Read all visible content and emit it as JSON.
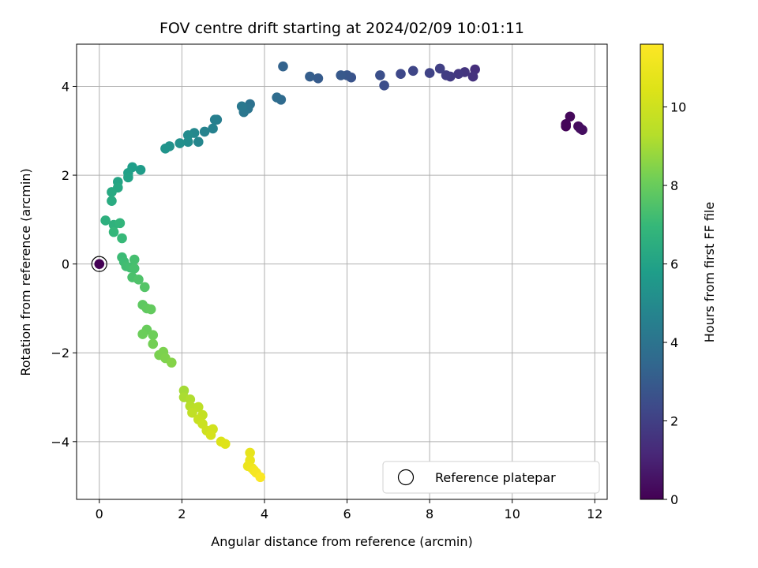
{
  "chart_data": {
    "type": "scatter",
    "title": "FOV centre drift starting at 2024/02/09 10:01:11",
    "xlabel": "Angular distance from reference (arcmin)",
    "ylabel": "Rotation from reference (arcmin)",
    "xlim": [
      -0.55,
      12.3
    ],
    "ylim": [
      -5.3,
      4.95
    ],
    "xticks": [
      0,
      2,
      4,
      6,
      8,
      10,
      12
    ],
    "yticks": [
      -4,
      -2,
      0,
      2,
      4
    ],
    "grid": true,
    "legend": {
      "position": "lower-right",
      "entries": [
        "Reference platepar"
      ]
    },
    "colorbar": {
      "label": "Hours from first FF file",
      "range": [
        0,
        11.6
      ],
      "ticks": [
        0,
        2,
        4,
        6,
        8,
        10
      ],
      "colormap": "viridis"
    },
    "reference_point": {
      "x": 0,
      "y": 0,
      "label": "Reference platepar"
    },
    "points": [
      {
        "x": 0.0,
        "y": 0.0,
        "t": 0.0
      },
      {
        "x": 11.3,
        "y": 3.1,
        "t": 0.1
      },
      {
        "x": 11.3,
        "y": 3.15,
        "t": 0.15
      },
      {
        "x": 11.4,
        "y": 3.32,
        "t": 0.2
      },
      {
        "x": 11.6,
        "y": 3.1,
        "t": 0.3
      },
      {
        "x": 11.65,
        "y": 3.05,
        "t": 0.35
      },
      {
        "x": 11.7,
        "y": 3.02,
        "t": 0.4
      },
      {
        "x": 9.1,
        "y": 4.38,
        "t": 1.4
      },
      {
        "x": 9.05,
        "y": 4.22,
        "t": 1.5
      },
      {
        "x": 8.85,
        "y": 4.32,
        "t": 1.6
      },
      {
        "x": 8.7,
        "y": 4.28,
        "t": 1.7
      },
      {
        "x": 8.5,
        "y": 4.22,
        "t": 1.8
      },
      {
        "x": 8.4,
        "y": 4.25,
        "t": 1.9
      },
      {
        "x": 8.25,
        "y": 4.4,
        "t": 2.0
      },
      {
        "x": 8.0,
        "y": 4.3,
        "t": 2.1
      },
      {
        "x": 7.6,
        "y": 4.35,
        "t": 2.2
      },
      {
        "x": 7.3,
        "y": 4.28,
        "t": 2.3
      },
      {
        "x": 6.9,
        "y": 4.02,
        "t": 2.5
      },
      {
        "x": 6.8,
        "y": 4.25,
        "t": 2.55
      },
      {
        "x": 6.1,
        "y": 4.2,
        "t": 2.7
      },
      {
        "x": 6.0,
        "y": 4.25,
        "t": 2.8
      },
      {
        "x": 5.85,
        "y": 4.25,
        "t": 2.9
      },
      {
        "x": 5.3,
        "y": 4.18,
        "t": 3.0
      },
      {
        "x": 5.1,
        "y": 4.22,
        "t": 3.1
      },
      {
        "x": 4.45,
        "y": 4.45,
        "t": 3.3
      },
      {
        "x": 4.4,
        "y": 3.7,
        "t": 3.6
      },
      {
        "x": 4.3,
        "y": 3.75,
        "t": 3.7
      },
      {
        "x": 3.65,
        "y": 3.6,
        "t": 3.9
      },
      {
        "x": 3.6,
        "y": 3.5,
        "t": 4.0
      },
      {
        "x": 3.5,
        "y": 3.42,
        "t": 4.1
      },
      {
        "x": 3.45,
        "y": 3.55,
        "t": 4.2
      },
      {
        "x": 2.85,
        "y": 3.25,
        "t": 4.4
      },
      {
        "x": 2.8,
        "y": 3.25,
        "t": 4.5
      },
      {
        "x": 2.75,
        "y": 3.05,
        "t": 4.6
      },
      {
        "x": 2.55,
        "y": 2.98,
        "t": 4.7
      },
      {
        "x": 2.4,
        "y": 2.75,
        "t": 4.8
      },
      {
        "x": 2.3,
        "y": 2.95,
        "t": 4.9
      },
      {
        "x": 2.15,
        "y": 2.9,
        "t": 5.0
      },
      {
        "x": 2.15,
        "y": 2.75,
        "t": 5.1
      },
      {
        "x": 1.95,
        "y": 2.72,
        "t": 5.2
      },
      {
        "x": 1.7,
        "y": 2.65,
        "t": 5.3
      },
      {
        "x": 1.6,
        "y": 2.6,
        "t": 5.4
      },
      {
        "x": 1.0,
        "y": 2.12,
        "t": 5.7
      },
      {
        "x": 0.8,
        "y": 2.18,
        "t": 5.8
      },
      {
        "x": 0.7,
        "y": 2.05,
        "t": 5.9
      },
      {
        "x": 0.7,
        "y": 1.95,
        "t": 6.0
      },
      {
        "x": 0.45,
        "y": 1.85,
        "t": 6.1
      },
      {
        "x": 0.45,
        "y": 1.72,
        "t": 6.2
      },
      {
        "x": 0.3,
        "y": 1.62,
        "t": 6.3
      },
      {
        "x": 0.3,
        "y": 1.42,
        "t": 6.4
      },
      {
        "x": 0.15,
        "y": 0.98,
        "t": 6.6
      },
      {
        "x": 0.35,
        "y": 0.88,
        "t": 6.7
      },
      {
        "x": 0.5,
        "y": 0.92,
        "t": 6.8
      },
      {
        "x": 0.35,
        "y": 0.72,
        "t": 6.9
      },
      {
        "x": 0.55,
        "y": 0.58,
        "t": 7.0
      },
      {
        "x": 0.55,
        "y": 0.15,
        "t": 7.1
      },
      {
        "x": 0.6,
        "y": 0.05,
        "t": 7.15
      },
      {
        "x": 0.65,
        "y": -0.05,
        "t": 7.2
      },
      {
        "x": 0.75,
        "y": -0.08,
        "t": 7.25
      },
      {
        "x": 0.85,
        "y": 0.1,
        "t": 7.3
      },
      {
        "x": 0.85,
        "y": -0.1,
        "t": 7.35
      },
      {
        "x": 0.8,
        "y": -0.3,
        "t": 7.4
      },
      {
        "x": 0.95,
        "y": -0.35,
        "t": 7.5
      },
      {
        "x": 1.1,
        "y": -0.52,
        "t": 7.6
      },
      {
        "x": 1.05,
        "y": -0.92,
        "t": 7.8
      },
      {
        "x": 1.15,
        "y": -1.0,
        "t": 7.85
      },
      {
        "x": 1.25,
        "y": -1.02,
        "t": 7.9
      },
      {
        "x": 1.15,
        "y": -1.48,
        "t": 8.0
      },
      {
        "x": 1.05,
        "y": -1.58,
        "t": 8.05
      },
      {
        "x": 1.3,
        "y": -1.6,
        "t": 8.1
      },
      {
        "x": 1.3,
        "y": -1.8,
        "t": 8.2
      },
      {
        "x": 1.45,
        "y": -2.05,
        "t": 8.3
      },
      {
        "x": 1.55,
        "y": -1.98,
        "t": 8.35
      },
      {
        "x": 1.6,
        "y": -2.12,
        "t": 8.4
      },
      {
        "x": 1.75,
        "y": -2.22,
        "t": 8.5
      },
      {
        "x": 2.05,
        "y": -2.85,
        "t": 9.0
      },
      {
        "x": 2.05,
        "y": -3.0,
        "t": 9.1
      },
      {
        "x": 2.2,
        "y": -3.05,
        "t": 9.2
      },
      {
        "x": 2.2,
        "y": -3.2,
        "t": 9.3
      },
      {
        "x": 2.3,
        "y": -3.25,
        "t": 9.4
      },
      {
        "x": 2.4,
        "y": -3.22,
        "t": 9.5
      },
      {
        "x": 2.25,
        "y": -3.35,
        "t": 9.6
      },
      {
        "x": 2.5,
        "y": -3.4,
        "t": 9.7
      },
      {
        "x": 2.4,
        "y": -3.5,
        "t": 9.8
      },
      {
        "x": 2.5,
        "y": -3.6,
        "t": 9.9
      },
      {
        "x": 2.6,
        "y": -3.75,
        "t": 10.0
      },
      {
        "x": 2.75,
        "y": -3.72,
        "t": 10.1
      },
      {
        "x": 2.7,
        "y": -3.85,
        "t": 10.2
      },
      {
        "x": 2.95,
        "y": -4.0,
        "t": 10.4
      },
      {
        "x": 3.05,
        "y": -4.05,
        "t": 10.5
      },
      {
        "x": 3.65,
        "y": -4.25,
        "t": 10.8
      },
      {
        "x": 3.65,
        "y": -4.42,
        "t": 10.9
      },
      {
        "x": 3.6,
        "y": -4.55,
        "t": 11.0
      },
      {
        "x": 3.7,
        "y": -4.6,
        "t": 11.1
      },
      {
        "x": 3.75,
        "y": -4.65,
        "t": 11.2
      },
      {
        "x": 3.8,
        "y": -4.7,
        "t": 11.3
      },
      {
        "x": 3.9,
        "y": -4.8,
        "t": 11.5
      }
    ]
  }
}
